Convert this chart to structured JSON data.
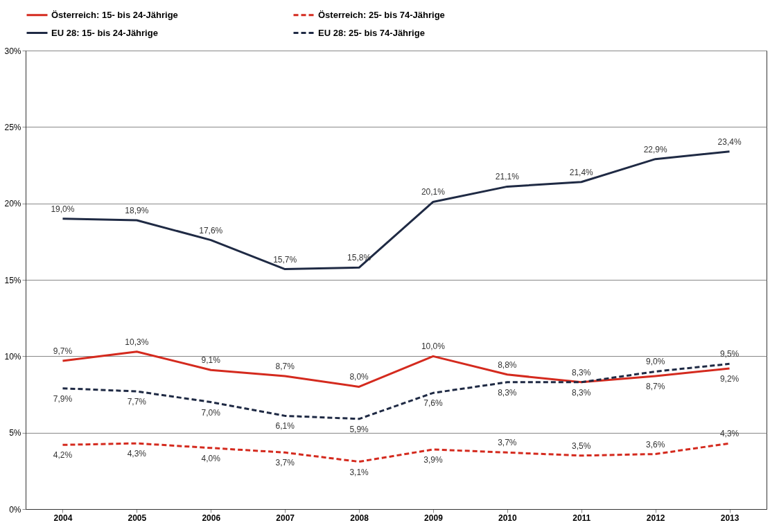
{
  "chart_data": {
    "type": "line",
    "categories": [
      "2004",
      "2005",
      "2006",
      "2007",
      "2008",
      "2009",
      "2010",
      "2011",
      "2012",
      "2013"
    ],
    "series": [
      {
        "name": "Österreich: 15- bis 24-Jährige",
        "color": "#d42a1e",
        "line_style": "solid",
        "values": [
          9.7,
          10.3,
          9.1,
          8.7,
          8.0,
          10.0,
          8.8,
          8.3,
          8.7,
          9.2
        ],
        "value_labels": [
          "9,7%",
          "10,3%",
          "9,1%",
          "8,7%",
          "8,0%",
          "10,0%",
          "8,8%",
          "8,3%",
          "8,7%",
          "9,2%"
        ]
      },
      {
        "name": "Österreich: 25- bis 74-Jährige",
        "color": "#d42a1e",
        "line_style": "dashed",
        "values": [
          4.2,
          4.3,
          4.0,
          3.7,
          3.1,
          3.9,
          3.7,
          3.5,
          3.6,
          4.3
        ],
        "value_labels": [
          "4,2%",
          "4,3%",
          "4,0%",
          "3,7%",
          "3,1%",
          "3,9%",
          "3,7%",
          "3,5%",
          "3,6%",
          "4,3%"
        ]
      },
      {
        "name": "EU 28: 15- bis 24-Jährige",
        "color": "#1f2a44",
        "line_style": "solid",
        "values": [
          19.0,
          18.9,
          17.6,
          15.7,
          15.8,
          20.1,
          21.1,
          21.4,
          22.9,
          23.4
        ],
        "value_labels": [
          "19,0%",
          "18,9%",
          "17,6%",
          "15,7%",
          "15,8%",
          "20,1%",
          "21,1%",
          "21,4%",
          "22,9%",
          "23,4%"
        ]
      },
      {
        "name": "EU 28: 25- bis 74-Jährige",
        "color": "#1f2a44",
        "line_style": "dashed",
        "values": [
          7.9,
          7.7,
          7.0,
          6.1,
          5.9,
          7.6,
          8.3,
          8.3,
          9.0,
          9.5
        ],
        "value_labels": [
          "7,9%",
          "7,7%",
          "7,0%",
          "6,1%",
          "5,9%",
          "7,6%",
          "8,3%",
          "8,3%",
          "9,0%",
          "9,5%"
        ]
      }
    ],
    "ylim": [
      0,
      30
    ],
    "yticks": [
      {
        "value": 0,
        "label": "0%"
      },
      {
        "value": 5,
        "label": "5%"
      },
      {
        "value": 10,
        "label": "10%"
      },
      {
        "value": 15,
        "label": "15%"
      },
      {
        "value": 20,
        "label": "20%"
      },
      {
        "value": 25,
        "label": "25%"
      },
      {
        "value": 30,
        "label": "30%"
      }
    ],
    "grid": "y",
    "legend": "top",
    "marker": "none"
  }
}
